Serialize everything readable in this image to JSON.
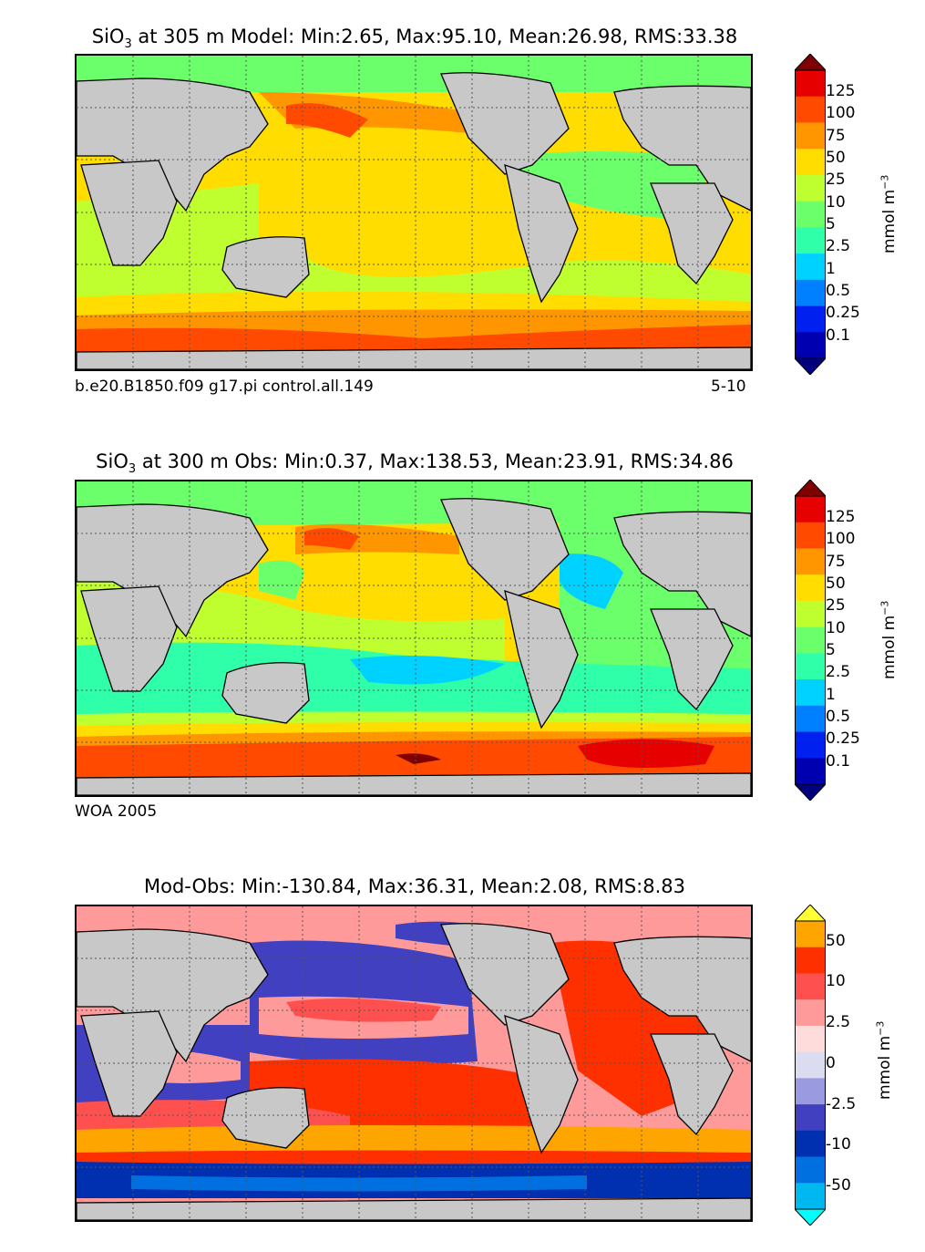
{
  "panels": [
    {
      "title_prefix": "SiO",
      "title_sub": "3",
      "title_rest": " at 305 m Model: Min:2.65, Max:95.10, Mean:26.98, RMS:33.38",
      "footer_left": "b.e20.B1850.f09 g17.pi control.all.149",
      "footer_right": "5-10",
      "colorbar_label": "mmol m",
      "colorbar_label_sup": "−3",
      "ticks": [
        "125",
        "100",
        "75",
        "50",
        "25",
        "10",
        "5",
        "2.5",
        "1",
        "0.5",
        "0.25",
        "0.1"
      ],
      "colors": [
        "#7f0000",
        "#e60000",
        "#ff4a00",
        "#ff9600",
        "#ffdd00",
        "#bfff30",
        "#6cff6c",
        "#2effa8",
        "#00d2ff",
        "#0080ff",
        "#0020f0",
        "#0000b0",
        "#00007f"
      ]
    },
    {
      "title_prefix": "SiO",
      "title_sub": "3",
      "title_rest": " at 300 m Obs: Min:0.37, Max:138.53, Mean:23.91, RMS:34.86",
      "footer_left": "WOA 2005",
      "footer_right": "",
      "colorbar_label": "mmol m",
      "colorbar_label_sup": "−3",
      "ticks": [
        "125",
        "100",
        "75",
        "50",
        "25",
        "10",
        "5",
        "2.5",
        "1",
        "0.5",
        "0.25",
        "0.1"
      ],
      "colors": [
        "#7f0000",
        "#e60000",
        "#ff4a00",
        "#ff9600",
        "#ffdd00",
        "#bfff30",
        "#6cff6c",
        "#2effa8",
        "#00d2ff",
        "#0080ff",
        "#0020f0",
        "#0000b0",
        "#00007f"
      ]
    },
    {
      "title_prefix": "Mod-Obs: Min:-130.84, Max:36.31, Mean:2.08, RMS:8.83",
      "title_sub": "",
      "title_rest": "",
      "footer_left": "",
      "footer_right": "",
      "colorbar_label": "mmol m",
      "colorbar_label_sup": "−3",
      "ticks": [
        "50",
        "10",
        "2.5",
        "0",
        "-2.5",
        "-10",
        "-50"
      ],
      "colors": [
        "#ffff33",
        "#ffa500",
        "#ff3000",
        "#ff5050",
        "#ff9a9a",
        "#ffdcdc",
        "#dcdcf0",
        "#9a9ae0",
        "#4040c0",
        "#0030b0",
        "#0070e0",
        "#00b8f0",
        "#00ffff"
      ]
    }
  ]
}
